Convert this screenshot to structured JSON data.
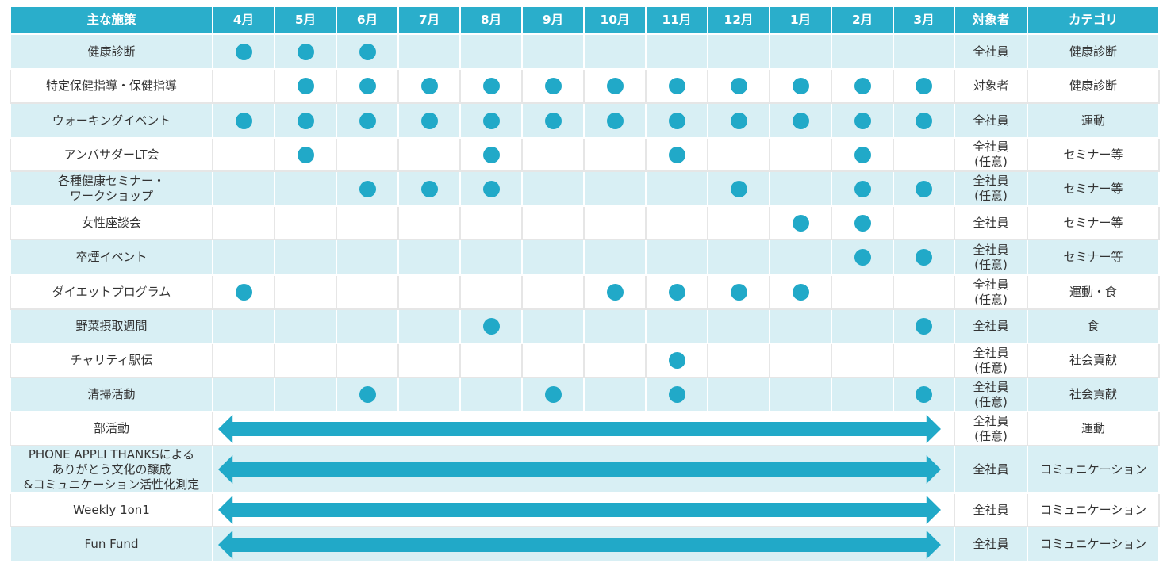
{
  "header": {
    "measure": "主な施策",
    "months": [
      "4月",
      "5月",
      "6月",
      "7月",
      "8月",
      "9月",
      "10月",
      "11月",
      "12月",
      "1月",
      "2月",
      "3月"
    ],
    "target": "対象者",
    "category": "カテゴリ"
  },
  "rows": [
    {
      "name": [
        "健康診断"
      ],
      "months": [
        1,
        1,
        1,
        0,
        0,
        0,
        0,
        0,
        0,
        0,
        0,
        0
      ],
      "target": [
        "全社員"
      ],
      "category": "健康診断"
    },
    {
      "name": [
        "特定保健指導・保健指導"
      ],
      "months": [
        0,
        1,
        1,
        1,
        1,
        1,
        1,
        1,
        1,
        1,
        1,
        1
      ],
      "target": [
        "対象者"
      ],
      "category": "健康診断"
    },
    {
      "name": [
        "ウォーキングイベント"
      ],
      "months": [
        1,
        1,
        1,
        1,
        1,
        1,
        1,
        1,
        1,
        1,
        1,
        1
      ],
      "target": [
        "全社員"
      ],
      "category": "運動"
    },
    {
      "name": [
        "アンバサダーLT会"
      ],
      "months": [
        0,
        1,
        0,
        0,
        1,
        0,
        0,
        1,
        0,
        0,
        1,
        0
      ],
      "target": [
        "全社員",
        "(任意)"
      ],
      "category": "セミナー等"
    },
    {
      "name": [
        "各種健康セミナー・",
        "ワークショップ"
      ],
      "months": [
        0,
        0,
        1,
        1,
        1,
        0,
        0,
        0,
        1,
        0,
        1,
        1
      ],
      "target": [
        "全社員",
        "(任意)"
      ],
      "category": "セミナー等"
    },
    {
      "name": [
        "女性座談会"
      ],
      "months": [
        0,
        0,
        0,
        0,
        0,
        0,
        0,
        0,
        0,
        1,
        1,
        0
      ],
      "target": [
        "全社員"
      ],
      "category": "セミナー等"
    },
    {
      "name": [
        "卒煙イベント"
      ],
      "months": [
        0,
        0,
        0,
        0,
        0,
        0,
        0,
        0,
        0,
        0,
        1,
        1
      ],
      "target": [
        "全社員",
        "(任意)"
      ],
      "category": "セミナー等"
    },
    {
      "name": [
        "ダイエットプログラム"
      ],
      "months": [
        1,
        0,
        0,
        0,
        0,
        0,
        1,
        1,
        1,
        1,
        0,
        0
      ],
      "target": [
        "全社員",
        "(任意)"
      ],
      "category": "運動・食"
    },
    {
      "name": [
        "野菜摂取週間"
      ],
      "months": [
        0,
        0,
        0,
        0,
        1,
        0,
        0,
        0,
        0,
        0,
        0,
        1
      ],
      "target": [
        "全社員"
      ],
      "category": "食"
    },
    {
      "name": [
        "チャリティ駅伝"
      ],
      "months": [
        0,
        0,
        0,
        0,
        0,
        0,
        0,
        1,
        0,
        0,
        0,
        0
      ],
      "target": [
        "全社員",
        "(任意)"
      ],
      "category": "社会貢献"
    },
    {
      "name": [
        "清掃活動"
      ],
      "months": [
        0,
        0,
        1,
        0,
        0,
        1,
        0,
        1,
        0,
        0,
        0,
        1
      ],
      "target": [
        "全社員",
        "(任意)"
      ],
      "category": "社会貢献"
    },
    {
      "name": [
        "部活動"
      ],
      "span": true,
      "target": [
        "全社員",
        "(任意)"
      ],
      "category": "運動"
    },
    {
      "name": [
        "PHONE APPLI THANKSによる",
        "ありがとう文化の醸成",
        "&コミュニケーション活性化測定"
      ],
      "span": true,
      "target": [
        "全社員"
      ],
      "category": "コミュニケーション"
    },
    {
      "name": [
        "Weekly 1on1"
      ],
      "span": true,
      "target": [
        "全社員"
      ],
      "category": "コミュニケーション"
    },
    {
      "name": [
        "Fun Fund"
      ],
      "span": true,
      "target": [
        "全社員"
      ],
      "category": "コミュニケーション"
    }
  ],
  "colors": {
    "header": "#2aaecb",
    "dot": "#21a9c8",
    "alt_row": "#d8eff4"
  }
}
